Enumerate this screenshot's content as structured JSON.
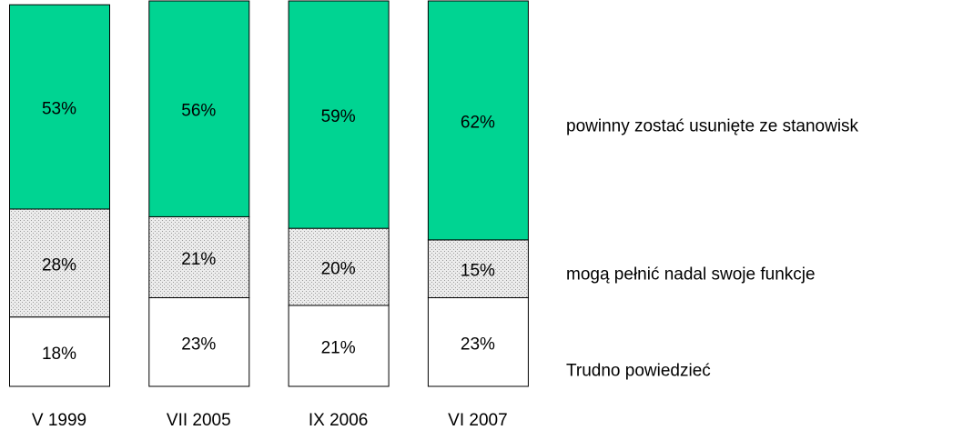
{
  "chart_data": {
    "type": "bar",
    "stacked": true,
    "categories": [
      "V 1999",
      "VII 2005",
      "IX 2006",
      "VI 2007"
    ],
    "series": [
      {
        "name": "Trudno powiedzieć",
        "color": "#ffffff",
        "values": [
          18,
          23,
          21,
          23
        ],
        "value_labels": [
          "18%",
          "23%",
          "21%",
          "23%"
        ]
      },
      {
        "name": "mogą pełnić nadal swoje funkcje",
        "color": "#d9d9d9",
        "pattern": "dotted",
        "values": [
          28,
          21,
          20,
          15
        ],
        "value_labels": [
          "28%",
          "21%",
          "20%",
          "15%"
        ]
      },
      {
        "name": "powinny zostać usunięte ze stanowisk",
        "color": "#00d492",
        "values": [
          53,
          56,
          59,
          62
        ],
        "value_labels": [
          "53%",
          "56%",
          "59%",
          "62%"
        ]
      }
    ]
  }
}
